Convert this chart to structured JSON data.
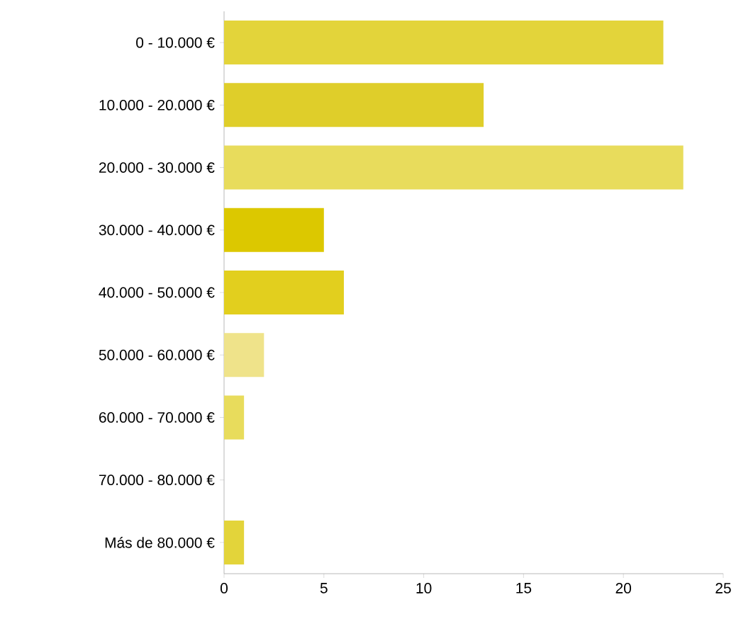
{
  "chart_data": {
    "type": "bar",
    "orientation": "horizontal",
    "categories": [
      "0 - 10.000 €",
      "10.000 - 20.000 €",
      "20.000 - 30.000 €",
      "30.000 - 40.000 €",
      "40.000 - 50.000 €",
      "50.000 - 60.000 €",
      "60.000 - 70.000 €",
      "70.000 - 80.000 €",
      "Más de 80.000 €"
    ],
    "values": [
      22,
      13,
      23,
      5,
      6,
      2,
      1,
      0,
      1
    ],
    "colors": [
      "#e3d43a",
      "#dfce2a",
      "#e8dc5c",
      "#dcc800",
      "#e2cf1e",
      "#efe38a",
      "#e8dc5c",
      "#e3d43a",
      "#e3d43a"
    ],
    "xlim": [
      0,
      25
    ],
    "xticks": [
      0,
      5,
      10,
      15,
      20,
      25
    ],
    "grid": false
  }
}
